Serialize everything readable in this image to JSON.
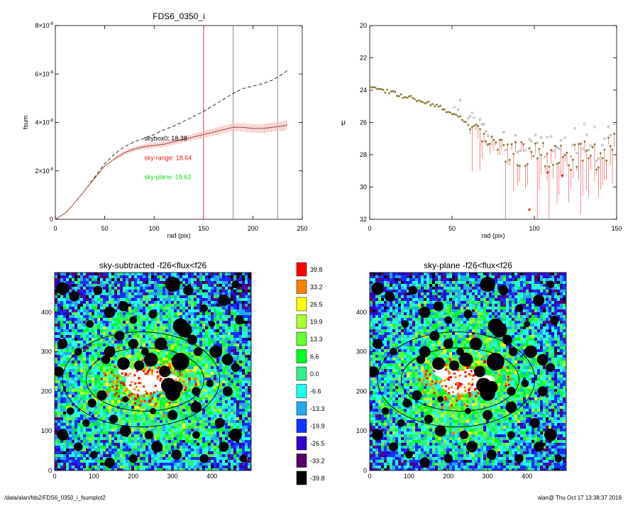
{
  "footer": {
    "left": "/data/alan/fds2/FDS6_0350_i_fsumplot2",
    "right": "alan@  Thu Oct 17 13:38:37 2019"
  },
  "colors": {
    "axis": "#000000",
    "curve_model": "#000000",
    "curve_data": "#d96040",
    "errorbar": "#e87070",
    "vline_red": "#d03030",
    "vline_gray": "#808080",
    "label_black": "#000000",
    "label_red": "#e02020",
    "label_green": "#20d020",
    "mu_point": "#8a7a30",
    "mu_point_alt": "#8f8f8f",
    "mu_errorbar": "#f04040",
    "mu_point_red": "#ff2020",
    "ellipse": "#000000",
    "mask": "#000000"
  },
  "chart_data": [
    {
      "id": "fsum",
      "type": "line",
      "title": "FDS6_0350_i",
      "xlabel": "rad (pix)",
      "ylabel": "fsum",
      "xlim": [
        0,
        250
      ],
      "ylim": [
        0,
        8e-08
      ],
      "xticks": [
        0,
        50,
        100,
        150,
        200,
        250
      ],
      "yticks": [
        {
          "value": 0,
          "mant": "0",
          "exp": ""
        },
        {
          "value": 2e-08,
          "mant": "2×10",
          "exp": "-8"
        },
        {
          "value": 4e-08,
          "mant": "4×10",
          "exp": "-8"
        },
        {
          "value": 6e-08,
          "mant": "6×10",
          "exp": "-8"
        },
        {
          "value": 8e-08,
          "mant": "8×10",
          "exp": "-8"
        }
      ],
      "vlines": [
        {
          "x": 150,
          "color": "red"
        },
        {
          "x": 180,
          "color": "gray"
        },
        {
          "x": 225,
          "color": "gray"
        }
      ],
      "annotations": [
        {
          "text": "skybox0: 18.38",
          "x": 90,
          "y": 3.25e-08,
          "color": "black"
        },
        {
          "text": "sky-range: 18.64",
          "x": 90,
          "y": 2.45e-08,
          "color": "red"
        },
        {
          "text": "sky-plane: 18.63",
          "x": 90,
          "y": 1.65e-08,
          "color": "green"
        }
      ],
      "series": [
        {
          "style": "dashed",
          "x": [
            0,
            10,
            20,
            30,
            40,
            50,
            60,
            70,
            80,
            90,
            100,
            110,
            120,
            130,
            140,
            150,
            160,
            170,
            180,
            190,
            200,
            210,
            220,
            230,
            235
          ],
          "y": [
            0,
            2.5e-09,
            7e-09,
            1.2e-08,
            1.75e-08,
            2.3e-08,
            2.7e-08,
            3e-08,
            3.2e-08,
            3.35e-08,
            3.5e-08,
            3.7e-08,
            3.85e-08,
            4.05e-08,
            4.25e-08,
            4.45e-08,
            4.7e-08,
            4.95e-08,
            5.2e-08,
            5.4e-08,
            5.5e-08,
            5.6e-08,
            5.75e-08,
            6e-08,
            6.15e-08
          ]
        },
        {
          "style": "solid",
          "x": [
            0,
            10,
            20,
            30,
            40,
            50,
            60,
            70,
            80,
            90,
            100,
            110,
            120,
            130,
            140,
            150,
            160,
            170,
            180,
            190,
            200,
            210,
            220,
            230,
            235
          ],
          "y": [
            0,
            2.5e-09,
            7e-09,
            1.2e-08,
            1.7e-08,
            2.2e-08,
            2.5e-08,
            2.75e-08,
            2.9e-08,
            3e-08,
            3.05e-08,
            3.1e-08,
            3.2e-08,
            3.3e-08,
            3.4e-08,
            3.5e-08,
            3.6e-08,
            3.7e-08,
            3.8e-08,
            3.8e-08,
            3.75e-08,
            3.75e-08,
            3.8e-08,
            3.85e-08,
            3.9e-08
          ]
        }
      ]
    },
    {
      "id": "mu",
      "type": "scatter",
      "title": "",
      "xlabel": "rad (pix)",
      "ylabel": "μ",
      "xlim": [
        0,
        150
      ],
      "ylim": [
        32,
        20
      ],
      "xticks": [
        0,
        50,
        100,
        150
      ],
      "yticks": [
        20,
        22,
        24,
        26,
        28,
        30,
        32
      ],
      "series": [
        {
          "x": [
            1,
            5,
            10,
            15,
            20,
            25,
            30,
            35,
            40,
            45,
            50,
            55,
            60,
            65,
            70,
            75,
            80,
            85,
            90,
            95,
            100,
            105,
            110,
            115,
            120,
            125,
            130,
            135,
            140,
            145,
            150
          ],
          "y": [
            23.9,
            23.95,
            24.05,
            24.2,
            24.35,
            24.5,
            24.65,
            24.8,
            25.0,
            25.2,
            25.4,
            25.7,
            26.1,
            26.6,
            27.0,
            27.3,
            27.55,
            27.7,
            27.85,
            27.95,
            28.0,
            28.05,
            28.1,
            28.0,
            28.05,
            28.1,
            28.0,
            28.1,
            28.0,
            27.8,
            27.5
          ]
        }
      ]
    },
    {
      "id": "sky-subtracted",
      "type": "heatmap",
      "title": "sky-subtracted -f26<flux<f26",
      "xlim": [
        0,
        500
      ],
      "ylim": [
        0,
        500
      ],
      "xticks": [
        0,
        100,
        200,
        300,
        400
      ],
      "yticks": [
        0,
        100,
        200,
        300,
        400
      ]
    },
    {
      "id": "sky-plane",
      "type": "heatmap",
      "title": "sky-plane -f26<flux<f26",
      "xlim": [
        0,
        500
      ],
      "ylim": [
        0,
        500
      ],
      "xticks": [
        0,
        100,
        200,
        300,
        400
      ],
      "yticks": [
        0,
        100,
        200,
        300,
        400
      ]
    },
    {
      "id": "colorbar",
      "type": "colorbar",
      "levels": [
        {
          "label": "39.8",
          "color": "#ff0000"
        },
        {
          "label": "33.2",
          "color": "#ff8000"
        },
        {
          "label": "26.5",
          "color": "#ffff00"
        },
        {
          "label": "19.9",
          "color": "#aaff33"
        },
        {
          "label": "13.3",
          "color": "#66ff33"
        },
        {
          "label": "6.6",
          "color": "#00ff22"
        },
        {
          "label": "0.0",
          "color": "#33ee88"
        },
        {
          "label": "-6.6",
          "color": "#22ffee"
        },
        {
          "label": "-13.3",
          "color": "#22aaee"
        },
        {
          "label": "-19.9",
          "color": "#1133ff"
        },
        {
          "label": "-26.5",
          "color": "#3300cc"
        },
        {
          "label": "-33.2",
          "color": "#550066"
        },
        {
          "label": "-39.8",
          "color": "#000000"
        }
      ]
    }
  ]
}
